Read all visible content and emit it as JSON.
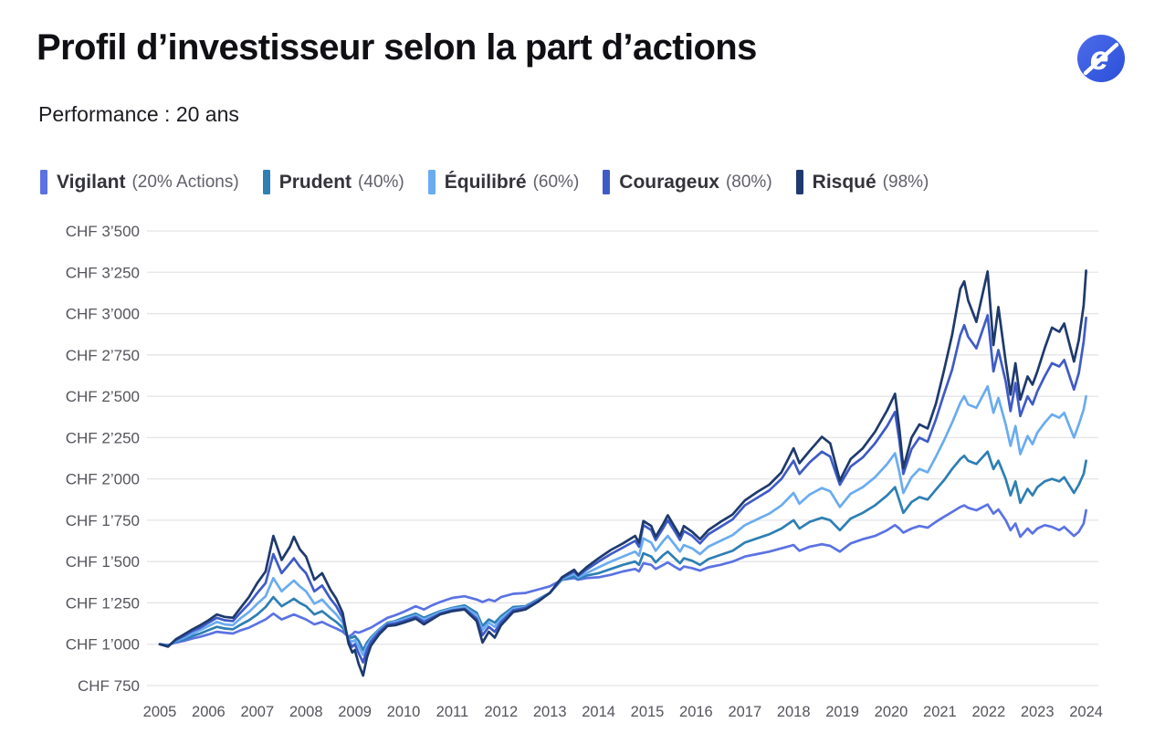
{
  "header": {
    "title": "Profil d’investisseur selon la part d’actions",
    "subtitle": "Performance : 20 ans"
  },
  "logo": {
    "letter": "e",
    "color_start": "#4d6cea",
    "color_end": "#2b4fd8"
  },
  "legend": [
    {
      "label": "Vigilant",
      "detail": "(20% Actions)",
      "color": "#5B72E3"
    },
    {
      "label": "Prudent",
      "detail": "(40%)",
      "color": "#2E7FB4"
    },
    {
      "label": "Équilibré",
      "detail": "(60%)",
      "color": "#6AACF0"
    },
    {
      "label": "Courageux",
      "detail": "(80%)",
      "color": "#3F5BC6"
    },
    {
      "label": "Risqué",
      "detail": "(98%)",
      "color": "#1E3A6D"
    }
  ],
  "chart_data": {
    "type": "line",
    "title": "Profil d’investisseur selon la part d’actions",
    "xlabel": "",
    "ylabel": "",
    "currency": "CHF",
    "grid": true,
    "legend_position": "top",
    "ylim": [
      750,
      3500
    ],
    "y_ticks": [
      3500,
      3250,
      3000,
      2750,
      2500,
      2250,
      2000,
      1750,
      1500,
      1250,
      1000,
      750
    ],
    "y_tick_labels": [
      "CHF 3’500",
      "CHF 3’250",
      "CHF 3’000",
      "CHF 2’750",
      "CHF 2’500",
      "CHF 2’250",
      "CHF 2’000",
      "CHF 1’750",
      "CHF 1’500",
      "CHF 1’250",
      "CHF 1’000",
      "CHF 750"
    ],
    "x_tick_labels": [
      "2005",
      "2006",
      "2007",
      "2008",
      "2009",
      "2010",
      "2011",
      "2012",
      "2013",
      "2014",
      "2015",
      "2016",
      "2017",
      "2018",
      "2019",
      "2020",
      "2021",
      "2022",
      "2023",
      "2024"
    ],
    "x": [
      2005.0,
      2005.17,
      2005.33,
      2005.5,
      2005.67,
      2005.83,
      2006.0,
      2006.17,
      2006.33,
      2006.5,
      2006.67,
      2006.83,
      2007.0,
      2007.17,
      2007.33,
      2007.5,
      2007.67,
      2007.75,
      2007.87,
      2008.0,
      2008.17,
      2008.33,
      2008.5,
      2008.62,
      2008.75,
      2008.87,
      2008.95,
      2009.0,
      2009.08,
      2009.17,
      2009.25,
      2009.33,
      2009.5,
      2009.67,
      2009.83,
      2010.0,
      2010.25,
      2010.42,
      2010.58,
      2010.75,
      2011.0,
      2011.25,
      2011.5,
      2011.62,
      2011.75,
      2011.87,
      2012.0,
      2012.25,
      2012.5,
      2012.75,
      2013.0,
      2013.25,
      2013.5,
      2013.58,
      2013.75,
      2014.0,
      2014.25,
      2014.5,
      2014.75,
      2014.83,
      2014.92,
      2015.08,
      2015.17,
      2015.33,
      2015.42,
      2015.58,
      2015.67,
      2015.75,
      2015.92,
      2016.08,
      2016.25,
      2016.5,
      2016.75,
      2017.0,
      2017.25,
      2017.5,
      2017.75,
      2018.0,
      2018.12,
      2018.33,
      2018.58,
      2018.75,
      2018.95,
      2019.17,
      2019.42,
      2019.67,
      2019.92,
      2020.08,
      2020.17,
      2020.25,
      2020.42,
      2020.58,
      2020.75,
      2020.92,
      2021.08,
      2021.25,
      2021.42,
      2021.5,
      2021.58,
      2021.75,
      2021.98,
      2022.1,
      2022.2,
      2022.35,
      2022.45,
      2022.55,
      2022.65,
      2022.8,
      2022.9,
      2023.0,
      2023.15,
      2023.3,
      2023.45,
      2023.55,
      2023.75,
      2023.85,
      2023.95,
      2024.0
    ],
    "series": [
      {
        "name": "Vigilant",
        "equity_share": "20% Actions",
        "color": "#5B72E3",
        "values": [
          1000,
          995,
          1010,
          1020,
          1035,
          1045,
          1060,
          1075,
          1070,
          1065,
          1085,
          1100,
          1125,
          1150,
          1185,
          1150,
          1170,
          1180,
          1165,
          1150,
          1120,
          1135,
          1110,
          1095,
          1075,
          1045,
          1060,
          1075,
          1070,
          1080,
          1090,
          1100,
          1130,
          1160,
          1175,
          1195,
          1230,
          1210,
          1235,
          1255,
          1280,
          1290,
          1270,
          1255,
          1270,
          1260,
          1285,
          1305,
          1310,
          1330,
          1350,
          1390,
          1400,
          1390,
          1400,
          1405,
          1420,
          1440,
          1455,
          1440,
          1490,
          1480,
          1455,
          1480,
          1495,
          1465,
          1450,
          1470,
          1460,
          1445,
          1465,
          1480,
          1500,
          1530,
          1545,
          1560,
          1580,
          1600,
          1565,
          1590,
          1605,
          1595,
          1560,
          1610,
          1635,
          1655,
          1690,
          1720,
          1700,
          1675,
          1700,
          1715,
          1705,
          1740,
          1770,
          1800,
          1830,
          1840,
          1825,
          1810,
          1845,
          1790,
          1815,
          1750,
          1690,
          1730,
          1650,
          1700,
          1670,
          1700,
          1720,
          1710,
          1690,
          1710,
          1655,
          1680,
          1730,
          1810
        ]
      },
      {
        "name": "Prudent",
        "equity_share": "40%",
        "color": "#2E7FB4",
        "values": [
          1000,
          993,
          1015,
          1030,
          1050,
          1065,
          1085,
          1105,
          1095,
          1090,
          1120,
          1145,
          1180,
          1225,
          1285,
          1230,
          1260,
          1275,
          1250,
          1230,
          1180,
          1200,
          1160,
          1135,
          1100,
          1040,
          1040,
          1050,
          1020,
          965,
          1010,
          1040,
          1090,
          1130,
          1140,
          1160,
          1185,
          1160,
          1180,
          1200,
          1220,
          1235,
          1190,
          1110,
          1150,
          1130,
          1170,
          1225,
          1230,
          1270,
          1310,
          1390,
          1410,
          1395,
          1415,
          1430,
          1455,
          1480,
          1500,
          1480,
          1550,
          1530,
          1495,
          1540,
          1560,
          1515,
          1490,
          1520,
          1505,
          1480,
          1515,
          1540,
          1565,
          1615,
          1640,
          1665,
          1700,
          1750,
          1700,
          1740,
          1765,
          1750,
          1690,
          1760,
          1795,
          1840,
          1900,
          1950,
          1870,
          1795,
          1860,
          1890,
          1875,
          1935,
          1990,
          2060,
          2120,
          2140,
          2110,
          2090,
          2165,
          2060,
          2110,
          2000,
          1900,
          1985,
          1855,
          1940,
          1900,
          1950,
          1985,
          2000,
          1985,
          2010,
          1915,
          1965,
          2030,
          2110
        ]
      },
      {
        "name": "Équilibré",
        "equity_share": "60%",
        "color": "#6AACF0",
        "values": [
          1000,
          990,
          1020,
          1040,
          1065,
          1085,
          1110,
          1135,
          1120,
          1115,
          1160,
          1195,
          1245,
          1290,
          1400,
          1320,
          1365,
          1385,
          1350,
          1320,
          1245,
          1270,
          1215,
          1180,
          1130,
          1030,
          1015,
          1025,
          985,
          935,
          990,
          1030,
          1085,
          1125,
          1135,
          1150,
          1175,
          1150,
          1170,
          1195,
          1215,
          1225,
          1175,
          1085,
          1130,
          1105,
          1155,
          1215,
          1225,
          1265,
          1310,
          1395,
          1425,
          1405,
          1430,
          1465,
          1500,
          1530,
          1560,
          1535,
          1640,
          1615,
          1565,
          1625,
          1655,
          1595,
          1560,
          1600,
          1580,
          1545,
          1590,
          1625,
          1660,
          1720,
          1755,
          1790,
          1840,
          1915,
          1850,
          1905,
          1945,
          1925,
          1830,
          1910,
          1950,
          2010,
          2090,
          2155,
          2040,
          1915,
          2010,
          2060,
          2040,
          2135,
          2230,
          2340,
          2460,
          2500,
          2450,
          2430,
          2560,
          2400,
          2490,
          2330,
          2200,
          2320,
          2150,
          2260,
          2210,
          2280,
          2340,
          2390,
          2370,
          2400,
          2250,
          2330,
          2420,
          2500
        ]
      },
      {
        "name": "Courageux",
        "equity_share": "80%",
        "color": "#3F5BC6",
        "values": [
          1000,
          988,
          1025,
          1050,
          1080,
          1100,
          1130,
          1160,
          1145,
          1140,
          1195,
          1245,
          1310,
          1370,
          1545,
          1430,
          1490,
          1520,
          1470,
          1430,
          1320,
          1355,
          1275,
          1230,
          1160,
          1020,
          985,
          1000,
          945,
          890,
          965,
          1015,
          1075,
          1120,
          1125,
          1140,
          1165,
          1135,
          1160,
          1185,
          1205,
          1215,
          1155,
          1055,
          1105,
          1075,
          1135,
          1205,
          1220,
          1260,
          1310,
          1400,
          1440,
          1415,
          1450,
          1500,
          1545,
          1585,
          1625,
          1590,
          1720,
          1690,
          1630,
          1705,
          1750,
          1675,
          1630,
          1685,
          1655,
          1610,
          1665,
          1710,
          1755,
          1840,
          1885,
          1930,
          2000,
          2110,
          2030,
          2100,
          2165,
          2135,
          1965,
          2075,
          2130,
          2215,
          2320,
          2405,
          2230,
          2030,
          2180,
          2250,
          2225,
          2360,
          2510,
          2660,
          2870,
          2930,
          2860,
          2790,
          2990,
          2650,
          2780,
          2590,
          2410,
          2580,
          2380,
          2500,
          2450,
          2530,
          2620,
          2700,
          2680,
          2720,
          2540,
          2640,
          2830,
          2975
        ]
      },
      {
        "name": "Risqué",
        "equity_share": "98%",
        "color": "#1E3A6D",
        "values": [
          1000,
          985,
          1030,
          1060,
          1090,
          1115,
          1145,
          1180,
          1165,
          1160,
          1225,
          1285,
          1370,
          1440,
          1655,
          1510,
          1590,
          1650,
          1575,
          1530,
          1390,
          1430,
          1330,
          1275,
          1190,
          1005,
          950,
          965,
          880,
          810,
          920,
          990,
          1060,
          1110,
          1115,
          1130,
          1155,
          1120,
          1150,
          1180,
          1200,
          1210,
          1140,
          1010,
          1075,
          1040,
          1115,
          1195,
          1210,
          1255,
          1310,
          1405,
          1450,
          1420,
          1465,
          1520,
          1570,
          1610,
          1655,
          1615,
          1745,
          1715,
          1650,
          1730,
          1780,
          1700,
          1655,
          1715,
          1680,
          1635,
          1690,
          1740,
          1785,
          1870,
          1920,
          1965,
          2040,
          2185,
          2095,
          2170,
          2255,
          2215,
          1990,
          2120,
          2185,
          2285,
          2415,
          2515,
          2300,
          2065,
          2250,
          2330,
          2305,
          2455,
          2650,
          2870,
          3150,
          3195,
          3080,
          2950,
          3255,
          2810,
          3040,
          2710,
          2510,
          2700,
          2480,
          2620,
          2570,
          2650,
          2790,
          2915,
          2890,
          2940,
          2710,
          2840,
          3050,
          3260
        ]
      }
    ],
    "style": {
      "grid_color": "#e4e4e8",
      "axis_text_color": "#54545c",
      "line_width": 2.7
    }
  }
}
